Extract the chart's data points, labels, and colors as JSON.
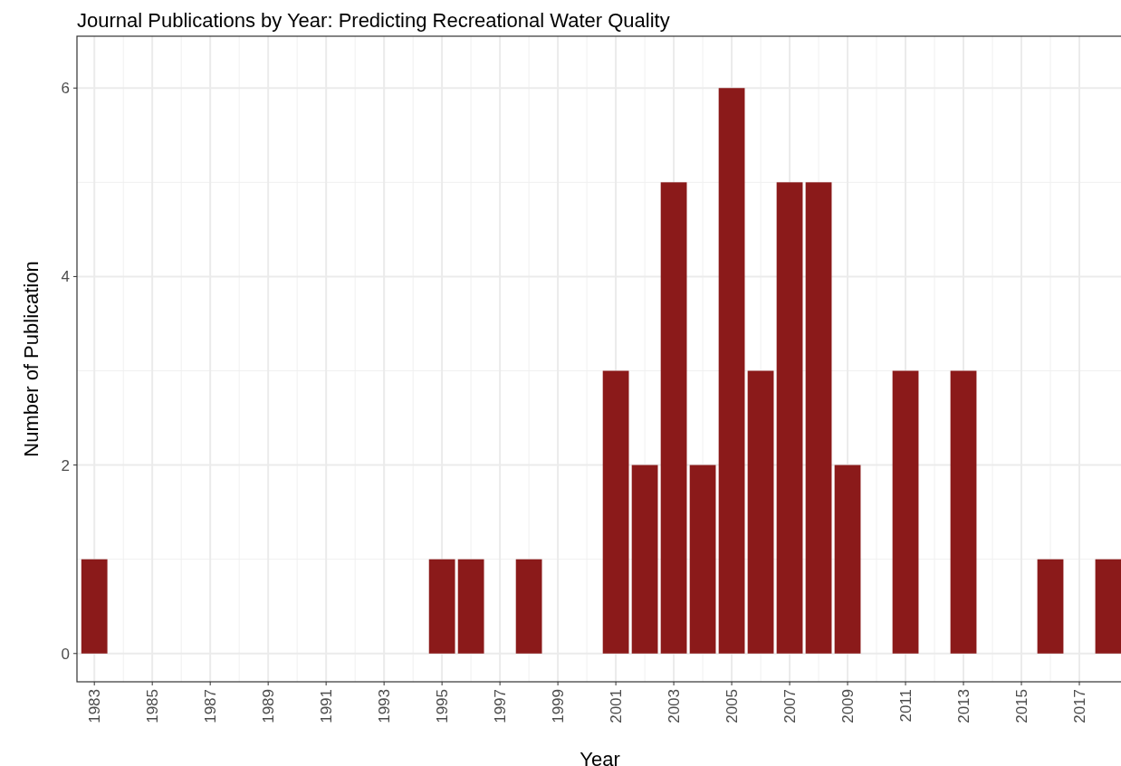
{
  "chart_data": {
    "type": "bar",
    "title": "Journal Publications by Year: Predicting Recreational Water Quality",
    "xlabel": "Year",
    "ylabel": "Number of Publication",
    "x": [
      1983,
      1995,
      1996,
      1998,
      2001,
      2002,
      2003,
      2004,
      2005,
      2006,
      2007,
      2008,
      2009,
      2011,
      2013,
      2016,
      2018
    ],
    "values": [
      1,
      1,
      1,
      1,
      3,
      2,
      5,
      2,
      6,
      3,
      5,
      5,
      2,
      3,
      3,
      1,
      1
    ],
    "color": "#8b1a1a",
    "xlim": [
      1982.4,
      2018.5
    ],
    "xticks": [
      1983,
      1985,
      1987,
      1989,
      1991,
      1993,
      1995,
      1997,
      1999,
      2001,
      2003,
      2005,
      2007,
      2009,
      2011,
      2013,
      2015,
      2017
    ],
    "ylim": [
      -0.3,
      6.55
    ],
    "yticks": [
      0,
      2,
      4,
      6
    ],
    "grid": true
  }
}
